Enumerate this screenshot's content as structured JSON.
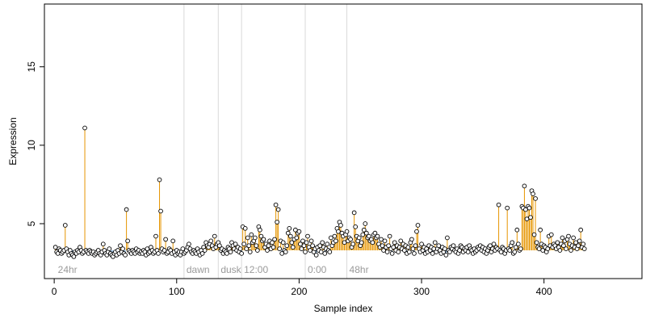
{
  "chart_data": {
    "type": "scatter",
    "title": "",
    "xlabel": "Sample index",
    "ylabel": "Expression",
    "xlim": [
      -8,
      480
    ],
    "ylim": [
      1.5,
      19
    ],
    "xticks": [
      0,
      100,
      200,
      300,
      400
    ],
    "yticks": [
      5,
      10,
      15
    ],
    "grid": false,
    "legend": "none",
    "baseline": 3.3,
    "colors": {
      "point_stroke": "#000000",
      "point_fill": "#ffffff",
      "above_baseline": "#e69500",
      "below_baseline": "#6fa8dc",
      "divider": "#d9d9d9",
      "section_text": "#9a9a9a"
    },
    "sections": [
      {
        "label": "24hr",
        "start": 1
      },
      {
        "label": "dawn",
        "start": 106
      },
      {
        "label": "dusk",
        "start": 134
      },
      {
        "label": "12:00",
        "start": 153
      },
      {
        "label": "0:00",
        "start": 205
      },
      {
        "label": "48hr",
        "start": 239
      }
    ],
    "y": [
      3.5,
      3.2,
      3.1,
      3.4,
      3.3,
      3.1,
      3.2,
      3.3,
      4.9,
      3.4,
      3.2,
      3.0,
      3.3,
      3.1,
      3.0,
      2.9,
      3.2,
      3.1,
      3.3,
      3.2,
      3.5,
      3.3,
      3.1,
      3.2,
      11.1,
      3.3,
      3.2,
      3.1,
      3.3,
      3.2,
      3.1,
      3.2,
      3.0,
      3.1,
      3.2,
      3.3,
      3.1,
      3.0,
      3.2,
      3.7,
      3.3,
      3.1,
      3.0,
      3.2,
      3.4,
      3.1,
      3.0,
      2.9,
      3.1,
      3.2,
      3.0,
      3.3,
      3.1,
      3.6,
      3.2,
      3.4,
      3.1,
      3.0,
      5.9,
      3.9,
      3.3,
      3.2,
      3.1,
      3.3,
      3.2,
      3.1,
      3.4,
      3.2,
      3.3,
      3.1,
      3.2,
      3.1,
      3.3,
      3.2,
      3.0,
      3.4,
      3.1,
      3.2,
      3.5,
      3.3,
      3.1,
      3.2,
      4.2,
      3.3,
      3.1,
      7.8,
      5.8,
      3.4,
      3.2,
      3.3,
      4.0,
      3.1,
      3.2,
      3.4,
      3.3,
      3.1,
      3.9,
      3.2,
      3.0,
      3.3,
      3.1,
      3.2,
      3.0,
      3.2,
      3.4,
      3.1,
      3.2,
      3.3,
      3.5,
      3.7,
      3.4,
      3.2,
      3.1,
      3.3,
      3.2,
      3.1,
      3.4,
      3.2,
      3.0,
      3.3,
      3.1,
      3.5,
      3.3,
      3.8,
      3.6,
      3.5,
      3.7,
      3.9,
      3.6,
      3.4,
      4.2,
      3.5,
      3.7,
      3.8,
      3.6,
      3.3,
      3.4,
      3.1,
      3.3,
      3.2,
      3.1,
      3.5,
      3.4,
      3.2,
      3.8,
      3.6,
      3.4,
      3.7,
      3.3,
      3.5,
      3.2,
      3.4,
      3.1,
      4.8,
      3.7,
      4.7,
      3.4,
      4.1,
      3.6,
      3.2,
      4.3,
      3.8,
      3.9,
      4.1,
      3.6,
      3.3,
      4.8,
      4.6,
      4.2,
      3.9,
      4.0,
      3.5,
      3.7,
      3.3,
      3.6,
      3.9,
      3.4,
      3.8,
      3.5,
      4.0,
      6.2,
      5.1,
      5.9,
      3.4,
      3.9,
      3.1,
      3.8,
      3.3,
      3.2,
      3.6,
      4.4,
      4.7,
      4.2,
      3.8,
      3.5,
      4.0,
      4.6,
      4.1,
      4.4,
      4.5,
      3.7,
      3.4,
      3.9,
      3.6,
      3.2,
      3.8,
      4.2,
      3.5,
      3.3,
      3.9,
      3.6,
      3.2,
      3.4,
      3.0,
      3.5,
      3.3,
      3.6,
      3.2,
      3.8,
      3.5,
      3.1,
      3.4,
      3.7,
      3.3,
      3.2,
      4.1,
      3.6,
      3.8,
      4.2,
      3.9,
      4.7,
      4.5,
      5.1,
      4.9,
      4.4,
      4.2,
      3.8,
      4.3,
      4.5,
      3.9,
      4.1,
      4.0,
      3.5,
      3.7,
      5.7,
      4.8,
      4.2,
      3.9,
      4.1,
      3.6,
      3.8,
      4.3,
      4.6,
      5.0,
      4.4,
      4.1,
      4.2,
      3.9,
      4.0,
      3.8,
      4.3,
      4.4,
      4.1,
      4.2,
      3.7,
      3.5,
      4.0,
      3.6,
      3.3,
      3.9,
      3.5,
      3.2,
      3.6,
      4.2,
      3.4,
      3.1,
      3.5,
      3.8,
      3.3,
      3.6,
      3.2,
      3.5,
      3.9,
      3.4,
      3.7,
      3.3,
      3.6,
      3.1,
      3.5,
      3.2,
      3.8,
      4.0,
      3.4,
      3.1,
      3.6,
      4.5,
      4.9,
      3.4,
      3.2,
      3.7,
      3.3,
      3.5,
      3.1,
      3.4,
      3.2,
      3.6,
      3.3,
      3.5,
      3.1,
      3.4,
      3.8,
      3.2,
      3.4,
      3.6,
      3.3,
      3.1,
      3.5,
      3.2,
      3.4,
      3.0,
      4.1,
      3.3,
      3.2,
      3.5,
      3.4,
      3.6,
      3.3,
      3.2,
      3.4,
      3.1,
      3.3,
      3.6,
      3.5,
      3.2,
      3.4,
      3.3,
      3.5,
      3.2,
      3.6,
      3.4,
      3.3,
      3.1,
      3.4,
      3.2,
      3.3,
      3.5,
      3.4,
      3.6,
      3.3,
      3.5,
      3.2,
      3.4,
      3.1,
      3.3,
      3.5,
      3.6,
      3.2,
      3.4,
      3.7,
      3.3,
      3.5,
      3.4,
      6.2,
      3.3,
      3.2,
      3.5,
      3.4,
      3.1,
      3.3,
      6.0,
      3.4,
      3.3,
      3.6,
      3.8,
      3.1,
      3.2,
      3.5,
      4.6,
      3.7,
      3.3,
      3.4,
      6.1,
      6.0,
      7.4,
      5.9,
      5.3,
      6.1,
      6.0,
      5.4,
      7.1,
      6.9,
      4.3,
      6.6,
      3.8,
      3.5,
      3.4,
      4.6,
      3.7,
      3.3,
      3.6,
      3.5,
      3.2,
      3.4,
      4.2,
      3.6,
      4.3,
      3.5,
      3.7,
      3.6,
      3.4,
      3.8,
      3.5,
      3.3,
      3.7,
      4.1,
      3.6,
      3.9,
      3.4,
      4.0,
      4.2,
      3.7,
      3.3,
      3.6,
      4.1,
      3.5,
      3.8,
      3.4,
      3.6,
      3.9,
      4.6,
      3.5,
      3.7,
      3.4
    ]
  }
}
